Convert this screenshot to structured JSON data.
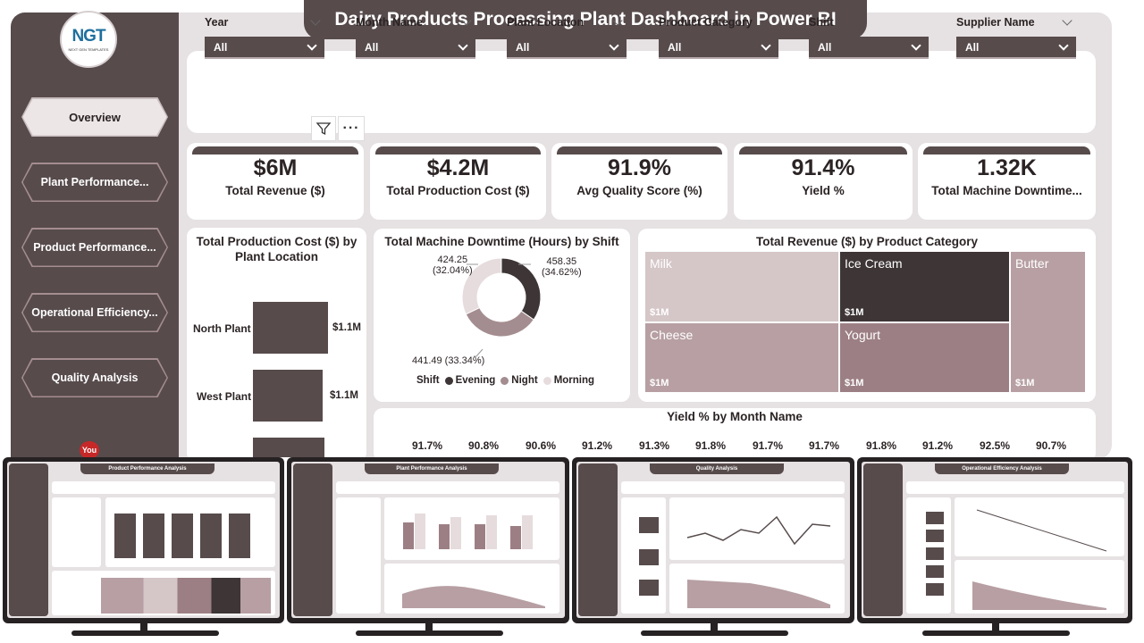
{
  "title": "Dairy Products Processing Plant Dashboard in Power BI",
  "logo": {
    "mark": "NGT",
    "sub": "NEXT GEN TEMPLATES"
  },
  "nav": [
    {
      "label": "Overview",
      "active": true
    },
    {
      "label": "Plant Performance..."
    },
    {
      "label": "Product Performance..."
    },
    {
      "label": "Operational Efficiency..."
    },
    {
      "label": "Quality Analysis"
    }
  ],
  "social": {
    "youtube": "You"
  },
  "filters": [
    {
      "label": "Year",
      "value": "All"
    },
    {
      "label": "Month Name",
      "value": "All"
    },
    {
      "label": "Plant Location",
      "value": "All"
    },
    {
      "label": "Product Category",
      "value": "All"
    },
    {
      "label": "Shift",
      "value": "All"
    },
    {
      "label": "Supplier Name",
      "value": "All"
    }
  ],
  "toolbar": {
    "more": "···"
  },
  "kpis": [
    {
      "value": "$6M",
      "label": "Total Revenue ($)"
    },
    {
      "value": "$4.2M",
      "label": "Total Production Cost ($)"
    },
    {
      "value": "91.9%",
      "label": "Avg Quality Score (%)"
    },
    {
      "value": "91.4%",
      "label": "Yield %"
    },
    {
      "value": "1.32K",
      "label": "Total Machine Downtime..."
    }
  ],
  "cost_by_location": {
    "title": "Total Production Cost ($) by Plant Location",
    "bars": [
      {
        "label": "North Plant",
        "value": "$1.1M"
      },
      {
        "label": "West Plant",
        "value": "$1.1M"
      }
    ]
  },
  "downtime_by_shift": {
    "title": "Total Machine Downtime (Hours) by Shift",
    "labels": [
      {
        "value": "424.25",
        "pct": "(32.04%)"
      },
      {
        "value": "458.35",
        "pct": "(34.62%)"
      },
      {
        "value": "441.49",
        "pct": "(33.34%)"
      }
    ],
    "legend_title": "Shift",
    "legend": [
      {
        "name": "Evening",
        "color": "#3d3536"
      },
      {
        "name": "Night",
        "color": "#a48d90"
      },
      {
        "name": "Morning",
        "color": "#e6dcdd"
      }
    ]
  },
  "revenue_by_category": {
    "title": "Total Revenue ($) by Product Category",
    "cells": [
      {
        "name": "Milk",
        "value": "$1M",
        "color": "#d5c6c8"
      },
      {
        "name": "Ice Cream",
        "value": "$1M",
        "color": "#3d3536"
      },
      {
        "name": "Butter",
        "value": "$1M",
        "color": "#b79fa3"
      },
      {
        "name": "Cheese",
        "value": "$1M",
        "color": "#b79fa3"
      },
      {
        "name": "Yogurt",
        "value": "$1M",
        "color": "#9c7f84"
      }
    ]
  },
  "yield_by_month": {
    "title": "Yield % by Month Name",
    "values": [
      "91.7%",
      "90.8%",
      "90.6%",
      "91.2%",
      "91.3%",
      "91.8%",
      "91.7%",
      "91.7%",
      "91.8%",
      "91.2%",
      "92.5%",
      "90.7%"
    ]
  },
  "thumbnails": [
    {
      "title": "Product Performance Analysis"
    },
    {
      "title": "Plant Performance Analysis"
    },
    {
      "title": "Quality Analysis"
    },
    {
      "title": "Operational Efficiency Analysis"
    }
  ],
  "chart_data": [
    {
      "type": "bar",
      "title": "Total Production Cost ($) by Plant Location",
      "categories": [
        "North Plant",
        "West Plant"
      ],
      "values": [
        1.1,
        1.1
      ],
      "value_unit": "$M"
    },
    {
      "type": "pie",
      "title": "Total Machine Downtime (Hours) by Shift",
      "categories": [
        "Evening",
        "Night",
        "Morning"
      ],
      "values": [
        458.35,
        441.49,
        424.25
      ],
      "percents": [
        34.62,
        33.34,
        32.04
      ],
      "legend": "bottom"
    },
    {
      "type": "table",
      "title": "Yield % by Month Name",
      "values": [
        91.7,
        90.8,
        90.6,
        91.2,
        91.3,
        91.8,
        91.7,
        91.7,
        91.8,
        91.2,
        92.5,
        90.7
      ]
    }
  ]
}
